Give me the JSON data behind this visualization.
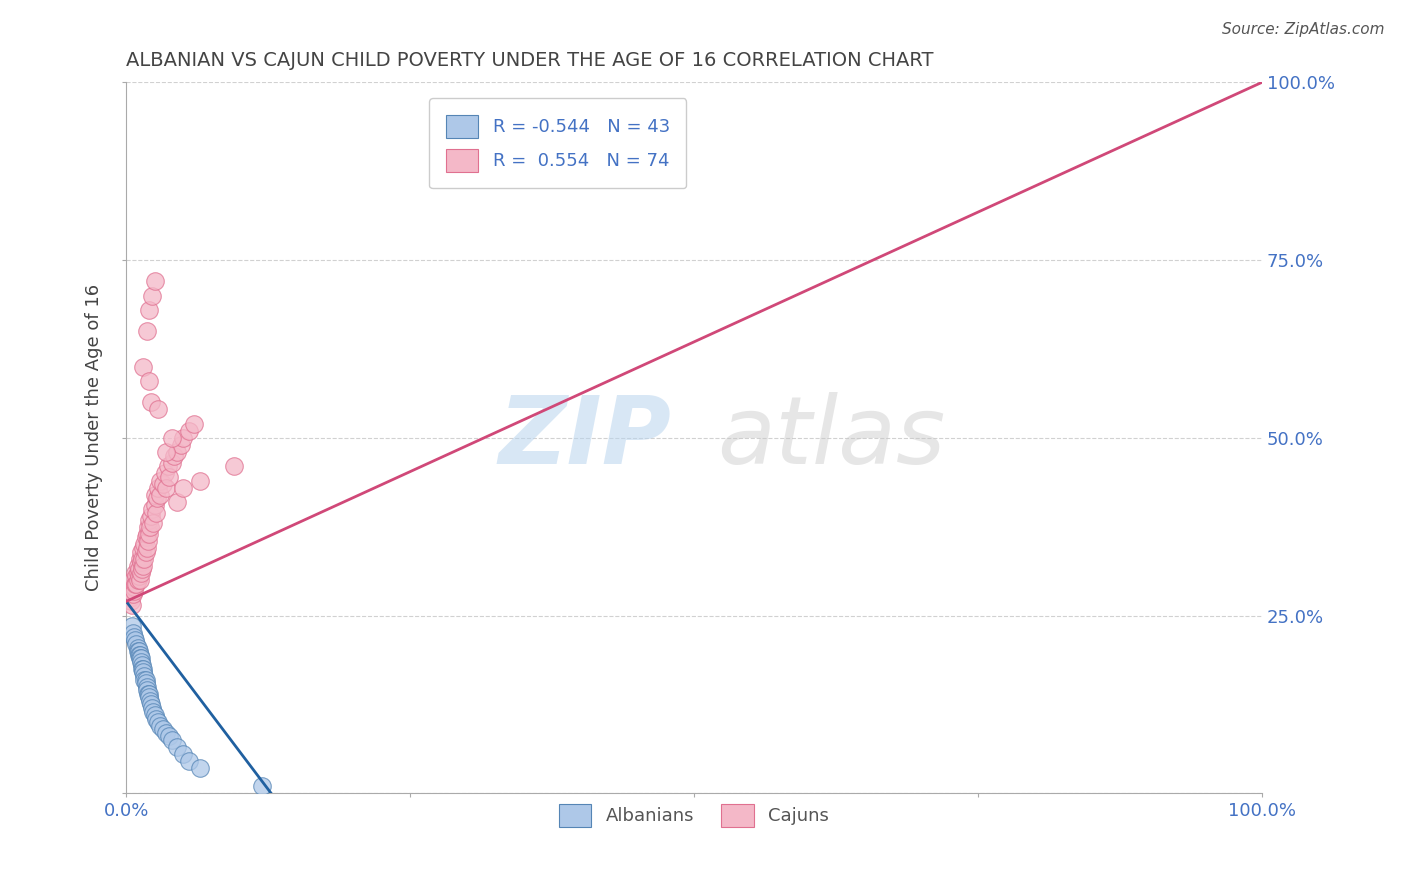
{
  "title": "ALBANIAN VS CAJUN CHILD POVERTY UNDER THE AGE OF 16 CORRELATION CHART",
  "source": "Source: ZipAtlas.com",
  "ylabel": "Child Poverty Under the Age of 16",
  "xlim": [
    0,
    1.0
  ],
  "ylim": [
    0,
    1.0
  ],
  "xticks": [
    0.0,
    0.25,
    0.5,
    0.75,
    1.0
  ],
  "xticklabels": [
    "0.0%",
    "",
    "",
    "",
    "100.0%"
  ],
  "yticks": [
    0.0,
    0.25,
    0.5,
    0.75,
    1.0
  ],
  "yticklabels_right": [
    "",
    "25.0%",
    "50.0%",
    "75.0%",
    "100.0%"
  ],
  "albanian_color": "#aec8e8",
  "cajun_color": "#f4b8c8",
  "albanian_edge_color": "#5585b5",
  "cajun_edge_color": "#e07090",
  "albanian_line_color": "#2060a0",
  "cajun_line_color": "#d04878",
  "R_albanian": -0.544,
  "N_albanian": 43,
  "R_cajun": 0.554,
  "N_cajun": 74,
  "watermark_zip": "ZIP",
  "watermark_atlas": "atlas",
  "background_color": "#ffffff",
  "grid_color": "#cccccc",
  "title_color": "#444444",
  "tick_color": "#4472c4",
  "legend_label_color": "#4472c4",
  "albanian_scatter": [
    [
      0.005,
      0.235
    ],
    [
      0.006,
      0.225
    ],
    [
      0.007,
      0.22
    ],
    [
      0.008,
      0.215
    ],
    [
      0.009,
      0.21
    ],
    [
      0.01,
      0.205
    ],
    [
      0.01,
      0.2
    ],
    [
      0.011,
      0.2
    ],
    [
      0.011,
      0.195
    ],
    [
      0.012,
      0.195
    ],
    [
      0.012,
      0.19
    ],
    [
      0.013,
      0.19
    ],
    [
      0.013,
      0.185
    ],
    [
      0.014,
      0.18
    ],
    [
      0.014,
      0.175
    ],
    [
      0.015,
      0.175
    ],
    [
      0.015,
      0.17
    ],
    [
      0.016,
      0.165
    ],
    [
      0.016,
      0.16
    ],
    [
      0.017,
      0.16
    ],
    [
      0.017,
      0.155
    ],
    [
      0.018,
      0.15
    ],
    [
      0.018,
      0.145
    ],
    [
      0.019,
      0.14
    ],
    [
      0.02,
      0.14
    ],
    [
      0.02,
      0.135
    ],
    [
      0.021,
      0.13
    ],
    [
      0.022,
      0.125
    ],
    [
      0.023,
      0.12
    ],
    [
      0.024,
      0.115
    ],
    [
      0.025,
      0.11
    ],
    [
      0.026,
      0.105
    ],
    [
      0.028,
      0.1
    ],
    [
      0.03,
      0.095
    ],
    [
      0.032,
      0.09
    ],
    [
      0.035,
      0.085
    ],
    [
      0.038,
      0.08
    ],
    [
      0.04,
      0.075
    ],
    [
      0.045,
      0.065
    ],
    [
      0.05,
      0.055
    ],
    [
      0.055,
      0.045
    ],
    [
      0.065,
      0.035
    ],
    [
      0.12,
      0.01
    ]
  ],
  "cajun_scatter": [
    [
      0.002,
      0.28
    ],
    [
      0.003,
      0.275
    ],
    [
      0.004,
      0.27
    ],
    [
      0.005,
      0.265
    ],
    [
      0.005,
      0.29
    ],
    [
      0.006,
      0.28
    ],
    [
      0.006,
      0.3
    ],
    [
      0.007,
      0.29
    ],
    [
      0.007,
      0.285
    ],
    [
      0.008,
      0.295
    ],
    [
      0.008,
      0.31
    ],
    [
      0.009,
      0.305
    ],
    [
      0.009,
      0.295
    ],
    [
      0.01,
      0.31
    ],
    [
      0.01,
      0.3
    ],
    [
      0.01,
      0.32
    ],
    [
      0.011,
      0.305
    ],
    [
      0.011,
      0.315
    ],
    [
      0.012,
      0.3
    ],
    [
      0.012,
      0.33
    ],
    [
      0.013,
      0.31
    ],
    [
      0.013,
      0.325
    ],
    [
      0.013,
      0.34
    ],
    [
      0.014,
      0.315
    ],
    [
      0.014,
      0.33
    ],
    [
      0.015,
      0.32
    ],
    [
      0.015,
      0.345
    ],
    [
      0.016,
      0.33
    ],
    [
      0.016,
      0.35
    ],
    [
      0.017,
      0.34
    ],
    [
      0.017,
      0.36
    ],
    [
      0.018,
      0.345
    ],
    [
      0.018,
      0.365
    ],
    [
      0.019,
      0.355
    ],
    [
      0.019,
      0.375
    ],
    [
      0.02,
      0.365
    ],
    [
      0.02,
      0.385
    ],
    [
      0.021,
      0.375
    ],
    [
      0.022,
      0.39
    ],
    [
      0.023,
      0.4
    ],
    [
      0.024,
      0.38
    ],
    [
      0.025,
      0.405
    ],
    [
      0.025,
      0.42
    ],
    [
      0.026,
      0.395
    ],
    [
      0.027,
      0.415
    ],
    [
      0.028,
      0.43
    ],
    [
      0.03,
      0.42
    ],
    [
      0.03,
      0.44
    ],
    [
      0.032,
      0.435
    ],
    [
      0.034,
      0.45
    ],
    [
      0.035,
      0.43
    ],
    [
      0.037,
      0.46
    ],
    [
      0.038,
      0.445
    ],
    [
      0.04,
      0.465
    ],
    [
      0.042,
      0.475
    ],
    [
      0.045,
      0.48
    ],
    [
      0.048,
      0.49
    ],
    [
      0.05,
      0.5
    ],
    [
      0.055,
      0.51
    ],
    [
      0.06,
      0.52
    ],
    [
      0.015,
      0.6
    ],
    [
      0.018,
      0.65
    ],
    [
      0.02,
      0.68
    ],
    [
      0.023,
      0.7
    ],
    [
      0.025,
      0.72
    ],
    [
      0.02,
      0.58
    ],
    [
      0.022,
      0.55
    ],
    [
      0.028,
      0.54
    ],
    [
      0.035,
      0.48
    ],
    [
      0.04,
      0.5
    ],
    [
      0.045,
      0.41
    ],
    [
      0.05,
      0.43
    ],
    [
      0.065,
      0.44
    ],
    [
      0.095,
      0.46
    ]
  ],
  "alb_line_x": [
    0.0,
    0.13
  ],
  "alb_line_y": [
    0.27,
    -0.005
  ],
  "caj_line_x": [
    0.0,
    1.0
  ],
  "caj_line_y": [
    0.27,
    1.0
  ]
}
